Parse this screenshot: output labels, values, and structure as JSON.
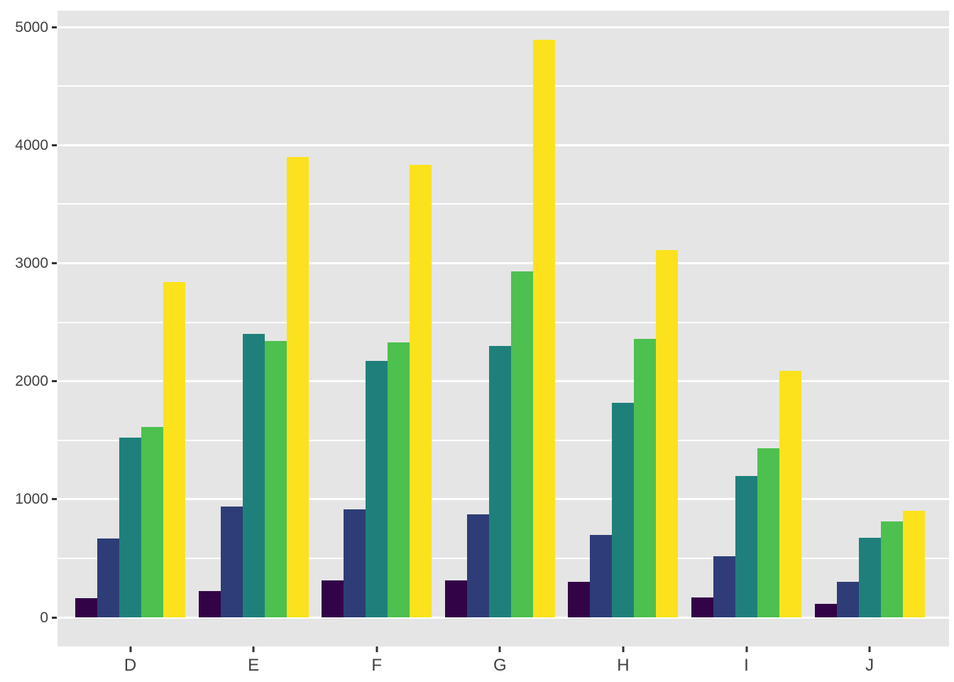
{
  "figure": {
    "background_color": "#FFFFFF",
    "panel_background_color": "#E5E5E5",
    "grid_color": "#FFFFFF",
    "axis_text_color": "#404040",
    "tick_mark_color": "#333333"
  },
  "chart_data": {
    "type": "bar",
    "subtype": "grouped-dodged",
    "title": "",
    "xlabel": "",
    "ylabel": "",
    "categories": [
      "D",
      "E",
      "F",
      "G",
      "H",
      "I",
      "J"
    ],
    "series": [
      {
        "name": "dark-purple",
        "color": "#330347",
        "values": [
          160,
          220,
          310,
          315,
          300,
          170,
          115
        ]
      },
      {
        "name": "dark-blue",
        "color": "#2E3D77",
        "values": [
          665,
          940,
          915,
          870,
          700,
          520,
          300
        ]
      },
      {
        "name": "teal",
        "color": "#1F807B",
        "values": [
          1520,
          2400,
          2170,
          2300,
          1820,
          1200,
          675
        ]
      },
      {
        "name": "green",
        "color": "#4DC04F",
        "values": [
          1610,
          2340,
          2330,
          2930,
          2360,
          1430,
          810
        ]
      },
      {
        "name": "yellow",
        "color": "#FBE21D",
        "values": [
          2840,
          3900,
          3830,
          4890,
          3110,
          2090,
          900
        ]
      }
    ],
    "y_axis": {
      "tick_values": [
        0,
        1000,
        2000,
        3000,
        4000,
        5000
      ],
      "tick_labels": [
        "0",
        "1000",
        "2000",
        "3000",
        "4000",
        "5000"
      ],
      "minor_tick_values": [
        500,
        1500,
        2500,
        3500,
        4500
      ],
      "ylim": [
        -247,
        5138
      ],
      "grid": "major-and-minor"
    },
    "x_axis": {
      "tick_labels": [
        "D",
        "E",
        "F",
        "G",
        "H",
        "I",
        "J"
      ]
    },
    "legend": "none"
  }
}
